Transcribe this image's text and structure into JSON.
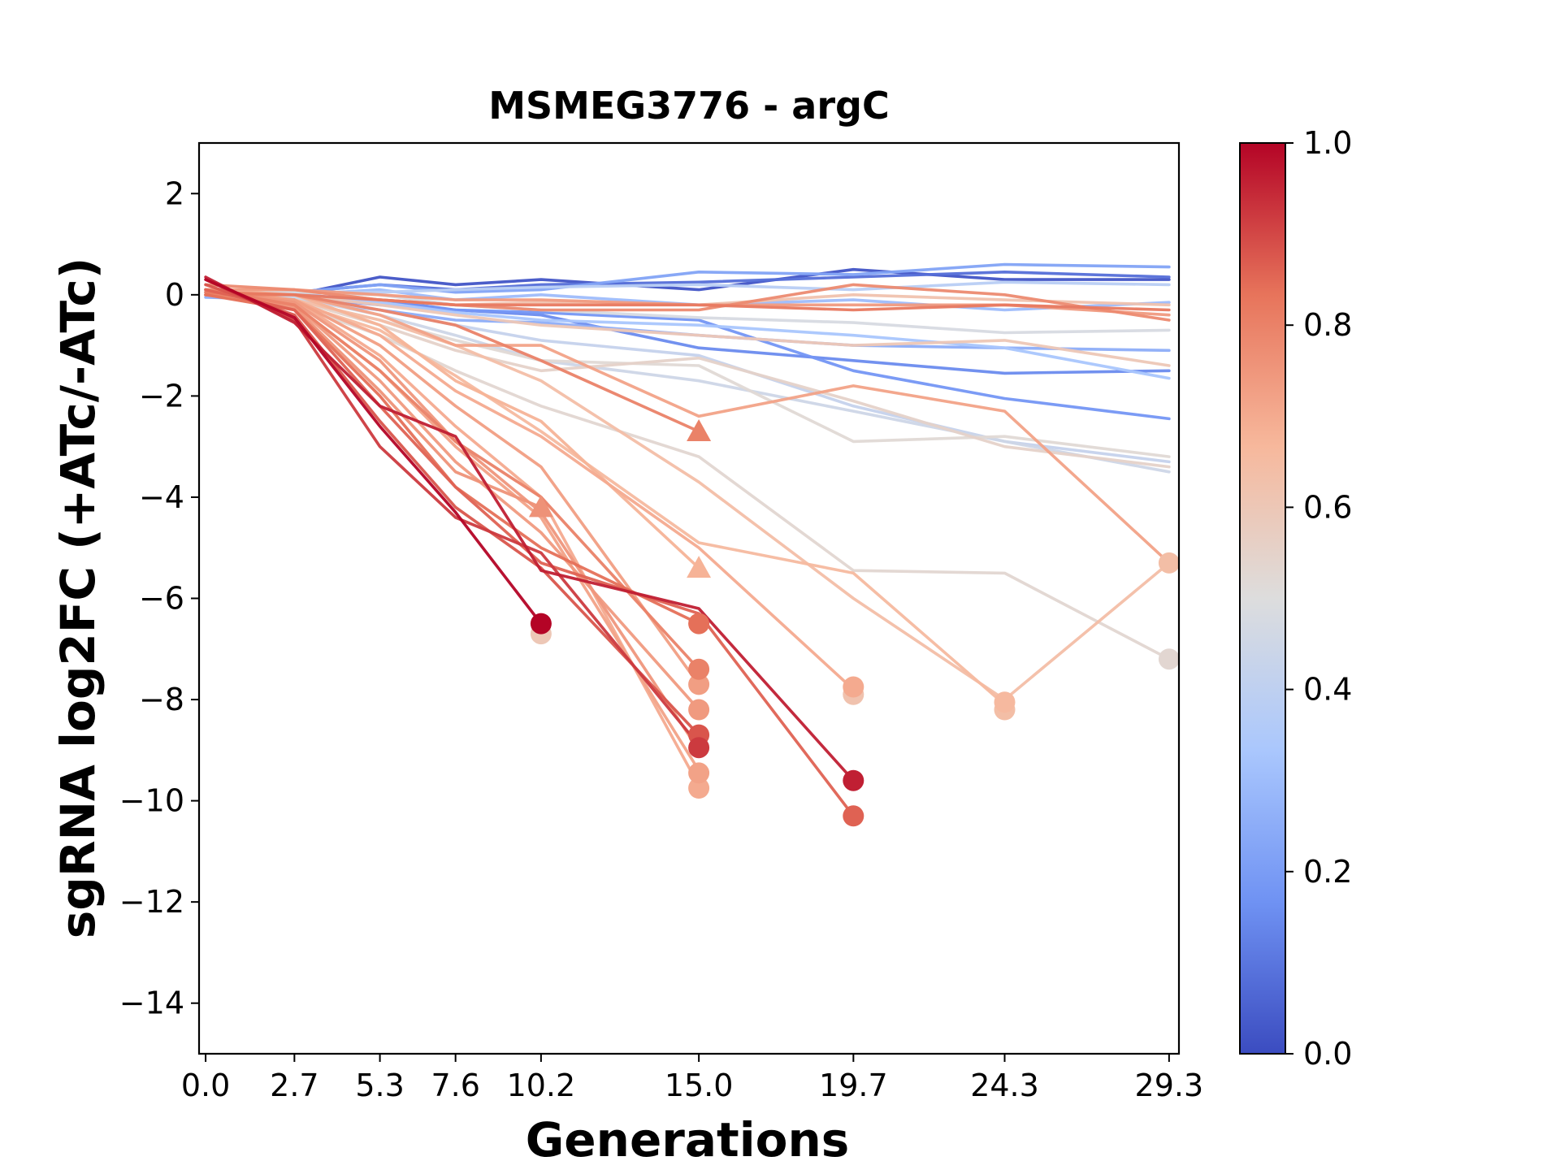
{
  "chart_data": {
    "type": "line",
    "title": "MSMEG3776 - argC",
    "xlabel": "Generations",
    "ylabel": "sgRNA log2FC (+ATc/-ATc)",
    "xlim": [
      -0.2,
      29.6
    ],
    "ylim": [
      -15,
      3
    ],
    "x_ticks": [
      0.0,
      2.7,
      5.3,
      7.6,
      10.2,
      15.0,
      19.7,
      24.3,
      29.3
    ],
    "x_tick_labels": [
      "0.0",
      "2.7",
      "5.3",
      "7.6",
      "10.2",
      "15.0",
      "19.7",
      "24.3",
      "29.3"
    ],
    "y_ticks": [
      2,
      0,
      -2,
      -4,
      -6,
      -8,
      -10,
      -12,
      -14
    ],
    "y_tick_labels": [
      "2",
      "0",
      "−2",
      "−4",
      "−6",
      "−8",
      "−10",
      "−12",
      "−14"
    ],
    "colorbar": {
      "cmap": "coolwarm",
      "range": [
        0.0,
        1.0
      ],
      "ticks": [
        0.0,
        0.2,
        0.4,
        0.6,
        0.8,
        1.0
      ],
      "tick_labels": [
        "0.0",
        "0.2",
        "0.4",
        "0.6",
        "0.8",
        "1.0"
      ],
      "colors_low_to_high": [
        "#3b4cc0",
        "#6f92f3",
        "#aac7fd",
        "#dddddd",
        "#f7b89c",
        "#e7745b",
        "#b40426"
      ]
    },
    "grid": false,
    "series": [
      {
        "c": 0.02,
        "x": [
          0,
          2.7,
          5.3,
          7.6,
          10.2,
          15.0,
          19.7,
          24.3,
          29.3
        ],
        "y": [
          0.1,
          0.0,
          0.35,
          0.2,
          0.3,
          0.1,
          0.5,
          0.3,
          0.3
        ]
      },
      {
        "c": 0.08,
        "x": [
          0,
          2.7,
          5.3,
          7.6,
          10.2,
          15.0,
          19.7,
          24.3,
          29.3
        ],
        "y": [
          0.0,
          0.05,
          0.2,
          0.1,
          0.2,
          0.25,
          0.35,
          0.45,
          0.35
        ]
      },
      {
        "c": 0.15,
        "x": [
          0,
          2.7,
          5.3,
          7.6,
          10.2,
          15.0,
          19.7,
          24.3,
          29.3
        ],
        "y": [
          0.05,
          0.0,
          -0.1,
          -0.3,
          -0.4,
          -1.05,
          -1.3,
          -1.55,
          -1.5
        ]
      },
      {
        "c": 0.18,
        "x": [
          0,
          2.7,
          5.3,
          7.6,
          10.2,
          15.0,
          19.7,
          24.3,
          29.3
        ],
        "y": [
          0.0,
          -0.05,
          -0.2,
          -0.3,
          -0.35,
          -0.5,
          -1.5,
          -2.05,
          -2.45
        ]
      },
      {
        "c": 0.22,
        "x": [
          0,
          2.7,
          5.3,
          7.6,
          10.2,
          15.0,
          19.7,
          24.3,
          29.3
        ],
        "y": [
          0.1,
          0.05,
          0.2,
          0.05,
          0.1,
          0.45,
          0.4,
          0.6,
          0.55
        ]
      },
      {
        "c": 0.25,
        "x": [
          0,
          2.7,
          5.3,
          7.6,
          10.2,
          15.0,
          19.7,
          24.3,
          29.3
        ],
        "y": [
          -0.05,
          -0.1,
          -0.3,
          -0.5,
          -0.55,
          -0.8,
          -1.0,
          -1.05,
          -1.1
        ]
      },
      {
        "c": 0.3,
        "x": [
          0,
          2.7,
          5.3,
          7.6,
          10.2,
          15.0,
          19.7,
          24.3,
          29.3
        ],
        "y": [
          0.0,
          0.0,
          0.1,
          -0.1,
          0.0,
          -0.2,
          -0.1,
          -0.3,
          -0.15
        ]
      },
      {
        "c": 0.33,
        "x": [
          0,
          2.7,
          5.3,
          7.6,
          10.2,
          15.0,
          19.7,
          24.3,
          29.3
        ],
        "y": [
          0.05,
          0.0,
          -0.15,
          -0.35,
          -0.5,
          -0.6,
          -0.8,
          -1.05,
          -1.65
        ]
      },
      {
        "c": 0.38,
        "x": [
          0,
          2.7,
          5.3,
          7.6,
          10.2,
          15.0,
          19.7,
          24.3,
          29.3
        ],
        "y": [
          0.1,
          0.05,
          0.05,
          0.1,
          0.15,
          0.2,
          0.1,
          0.25,
          0.2
        ]
      },
      {
        "c": 0.42,
        "x": [
          0,
          2.7,
          5.3,
          7.6,
          10.2,
          15.0,
          19.7,
          24.3,
          29.3
        ],
        "y": [
          0.0,
          -0.05,
          -0.3,
          -0.6,
          -0.9,
          -1.2,
          -2.2,
          -2.9,
          -3.3
        ]
      },
      {
        "c": 0.45,
        "x": [
          0,
          2.7,
          5.3,
          7.6,
          10.2,
          15.0,
          19.7,
          24.3,
          29.3
        ],
        "y": [
          0.0,
          -0.05,
          -0.4,
          -0.8,
          -1.3,
          -1.7,
          -2.3,
          -2.9,
          -3.5
        ]
      },
      {
        "c": 0.48,
        "x": [
          0,
          2.7,
          5.3,
          7.6,
          10.2,
          15.0,
          19.7,
          24.3,
          29.3
        ],
        "y": [
          0.05,
          0.05,
          0.0,
          -0.2,
          -0.3,
          -0.45,
          -0.55,
          -0.75,
          -0.7
        ]
      },
      {
        "c": 0.52,
        "x": [
          0,
          2.7,
          5.3,
          7.6,
          10.2,
          15.0,
          19.7,
          24.3,
          29.3
        ],
        "y": [
          0.0,
          -0.1,
          -0.5,
          -0.9,
          -1.3,
          -1.4,
          -2.9,
          -2.8,
          -3.2
        ]
      },
      {
        "c": 0.55,
        "x": [
          0,
          2.7,
          5.3,
          7.6,
          10.2,
          15.0,
          19.7,
          24.3,
          29.3
        ],
        "y": [
          0.0,
          -0.1,
          -0.6,
          -1.1,
          -1.5,
          -1.25,
          -2.1,
          -3.0,
          -3.4
        ]
      },
      {
        "c": 0.53,
        "x": [
          0,
          2.7,
          5.3,
          7.6,
          10.2,
          15.0,
          19.7,
          24.3,
          29.3
        ],
        "y": [
          0.0,
          -0.2,
          -0.8,
          -1.5,
          -2.2,
          -3.2,
          -5.45,
          -5.5,
          -7.2
        ]
      },
      {
        "c": 0.6,
        "x": [
          0,
          2.7,
          5.3,
          7.6,
          10.2,
          15.0,
          19.7,
          24.3,
          29.3
        ],
        "y": [
          0.05,
          0.0,
          -0.2,
          -0.4,
          -0.6,
          -0.8,
          -1.0,
          -0.9,
          -1.4
        ]
      },
      {
        "c": 0.62,
        "x": [
          0,
          2.7,
          5.3,
          7.6,
          10.2,
          15.0,
          19.7,
          24.3,
          29.3
        ],
        "y": [
          0.1,
          0.1,
          -0.1,
          -0.2,
          -0.15,
          -0.2,
          0.0,
          -0.1,
          -0.2
        ]
      },
      {
        "c": 0.64,
        "x": [
          0,
          2.7,
          5.3,
          7.6,
          10.2,
          15.0,
          19.7,
          24.3,
          29.3
        ],
        "y": [
          0.0,
          -0.1,
          -0.5,
          -1.0,
          -1.7,
          -3.7,
          -6.0,
          -8.0,
          -5.3
        ]
      },
      {
        "c": 0.66,
        "x": [
          0,
          2.7,
          5.3,
          7.6,
          10.2,
          15.0,
          19.7,
          24.3
        ],
        "y": [
          0.0,
          -0.15,
          -0.7,
          -1.6,
          -2.7,
          -4.9,
          -5.5,
          -8.1
        ]
      },
      {
        "c": 0.68,
        "x": [
          0,
          2.7,
          5.3,
          7.6,
          10.2,
          15.0
        ],
        "y": [
          0.1,
          0.0,
          -0.6,
          -1.7,
          -2.5,
          -5.4
        ]
      },
      {
        "c": 0.7,
        "x": [
          0,
          2.7,
          5.3,
          7.6,
          10.2,
          15.0,
          19.7
        ],
        "y": [
          0.0,
          -0.1,
          -0.8,
          -1.9,
          -2.8,
          -5.0,
          -7.8
        ]
      },
      {
        "c": 0.72,
        "x": [
          0,
          2.7,
          5.3,
          7.6,
          10.2,
          15.0,
          19.7,
          24.3,
          29.3
        ],
        "y": [
          0.0,
          0.0,
          -0.4,
          -1.0,
          -1.0,
          -2.4,
          -1.8,
          -2.3,
          -5.3
        ]
      },
      {
        "c": 0.7,
        "x": [
          0,
          2.7,
          5.3,
          7.6,
          10.2,
          15.0
        ],
        "y": [
          0.1,
          -0.1,
          -1.2,
          -2.6,
          -4.0,
          -9.7
        ]
      },
      {
        "c": 0.72,
        "x": [
          0,
          2.7,
          5.3,
          7.6,
          10.2,
          15.0
        ],
        "y": [
          0.0,
          -0.2,
          -1.5,
          -3.0,
          -4.4,
          -9.4
        ]
      },
      {
        "c": 0.73,
        "x": [
          0,
          2.7,
          5.3,
          7.6,
          10.2,
          15.0
        ],
        "y": [
          0.05,
          -0.1,
          -1.0,
          -2.2,
          -3.4,
          -7.7
        ]
      },
      {
        "c": 0.74,
        "x": [
          0,
          2.7,
          5.3,
          7.6,
          10.2,
          15.0
        ],
        "y": [
          0.0,
          -0.2,
          -1.7,
          -3.3,
          -4.7,
          -8.2
        ]
      },
      {
        "c": 0.75,
        "x": [
          0,
          2.7,
          5.3,
          7.6,
          10.2,
          15.0
        ],
        "y": [
          0.1,
          -0.15,
          -1.3,
          -2.9,
          -4.3,
          -9.0
        ]
      },
      {
        "c": 0.76,
        "x": [
          0,
          2.7,
          5.3,
          7.6,
          10.2
        ],
        "y": [
          0.0,
          -0.25,
          -1.9,
          -3.5,
          -4.2
        ]
      },
      {
        "c": 0.74,
        "x": [
          0,
          2.7,
          5.3,
          7.6,
          10.2,
          15.0,
          19.7,
          24.3,
          29.3
        ],
        "y": [
          0.1,
          0.1,
          0.0,
          -0.1,
          -0.1,
          -0.2,
          -0.2,
          -0.2,
          -0.4
        ]
      },
      {
        "c": 0.78,
        "x": [
          0,
          2.7,
          5.3,
          7.6,
          10.2,
          15.0,
          19.7,
          24.3,
          29.3
        ],
        "y": [
          0.2,
          0.1,
          -0.1,
          -0.2,
          -0.3,
          -0.3,
          0.2,
          0.0,
          -0.5
        ]
      },
      {
        "c": 0.8,
        "x": [
          0,
          2.7,
          5.3,
          7.6,
          10.2,
          15.0
        ],
        "y": [
          0.0,
          0.0,
          -0.3,
          -0.6,
          -1.3,
          -2.7
        ]
      },
      {
        "c": 0.8,
        "x": [
          0,
          2.7,
          5.3,
          7.6,
          10.2,
          15.0
        ],
        "y": [
          0.1,
          -0.2,
          -1.5,
          -2.9,
          -4.0,
          -7.4
        ]
      },
      {
        "c": 0.82,
        "x": [
          0,
          2.7,
          5.3,
          7.6,
          10.2,
          15.0,
          19.7,
          24.3,
          29.3
        ],
        "y": [
          0.05,
          0.0,
          -0.1,
          -0.2,
          -0.2,
          -0.2,
          -0.3,
          -0.2,
          -0.3
        ]
      },
      {
        "c": 0.84,
        "x": [
          0,
          2.7,
          5.3,
          7.6,
          10.2,
          15.0
        ],
        "y": [
          0.0,
          -0.3,
          -2.0,
          -3.8,
          -5.0,
          -6.5
        ]
      },
      {
        "c": 0.86,
        "x": [
          0,
          2.7,
          5.3,
          7.6,
          10.2,
          15.0,
          19.7
        ],
        "y": [
          0.1,
          -0.3,
          -2.2,
          -3.8,
          -5.3,
          -6.3,
          -10.3
        ]
      },
      {
        "c": 0.88,
        "x": [
          0,
          2.7,
          5.3,
          7.6,
          10.2,
          15.0
        ],
        "y": [
          0.2,
          -0.4,
          -2.5,
          -4.2,
          -5.4,
          -8.7
        ]
      },
      {
        "c": 0.92,
        "x": [
          0,
          2.7,
          5.3,
          7.6,
          10.2,
          15.0
        ],
        "y": [
          0.3,
          -0.5,
          -3.0,
          -4.4,
          -5.1,
          -8.9
        ]
      },
      {
        "c": 0.96,
        "x": [
          0,
          2.7,
          5.3,
          7.6,
          10.2,
          15.0,
          19.7
        ],
        "y": [
          0.35,
          -0.55,
          -2.2,
          -2.8,
          -5.45,
          -6.2,
          -9.6
        ]
      },
      {
        "c": 1.0,
        "x": [
          0,
          2.7,
          5.3,
          7.6,
          10.2
        ],
        "y": [
          0.3,
          -0.45,
          -2.6,
          -4.3,
          -6.5
        ]
      }
    ],
    "end_markers": [
      {
        "x": 15.0,
        "y": -2.7,
        "shape": "triangle",
        "c": 0.8
      },
      {
        "x": 10.2,
        "y": -4.2,
        "shape": "triangle",
        "c": 0.76
      },
      {
        "x": 15.0,
        "y": -5.4,
        "shape": "triangle",
        "c": 0.68
      },
      {
        "x": 10.2,
        "y": -6.7,
        "shape": "circle",
        "c": 0.6
      },
      {
        "x": 10.2,
        "y": -6.5,
        "shape": "circle",
        "c": 1.0
      },
      {
        "x": 15.0,
        "y": -6.5,
        "shape": "circle",
        "c": 0.84
      },
      {
        "x": 15.0,
        "y": -7.4,
        "shape": "circle",
        "c": 0.8
      },
      {
        "x": 15.0,
        "y": -7.7,
        "shape": "circle",
        "c": 0.73
      },
      {
        "x": 15.0,
        "y": -8.2,
        "shape": "circle",
        "c": 0.74
      },
      {
        "x": 15.0,
        "y": -8.7,
        "shape": "circle",
        "c": 0.88
      },
      {
        "x": 15.0,
        "y": -8.95,
        "shape": "circle",
        "c": 0.92
      },
      {
        "x": 15.0,
        "y": -9.45,
        "shape": "circle",
        "c": 0.72
      },
      {
        "x": 15.0,
        "y": -9.75,
        "shape": "circle",
        "c": 0.7
      },
      {
        "x": 19.7,
        "y": -7.9,
        "shape": "circle",
        "c": 0.62
      },
      {
        "x": 19.7,
        "y": -7.75,
        "shape": "circle",
        "c": 0.7
      },
      {
        "x": 19.7,
        "y": -9.6,
        "shape": "circle",
        "c": 0.96
      },
      {
        "x": 19.7,
        "y": -10.3,
        "shape": "circle",
        "c": 0.86
      },
      {
        "x": 24.3,
        "y": -8.2,
        "shape": "circle",
        "c": 0.64
      },
      {
        "x": 24.3,
        "y": -8.05,
        "shape": "circle",
        "c": 0.66
      },
      {
        "x": 29.3,
        "y": -5.3,
        "shape": "circle",
        "c": 0.64
      },
      {
        "x": 29.3,
        "y": -7.2,
        "shape": "circle",
        "c": 0.53
      }
    ]
  }
}
